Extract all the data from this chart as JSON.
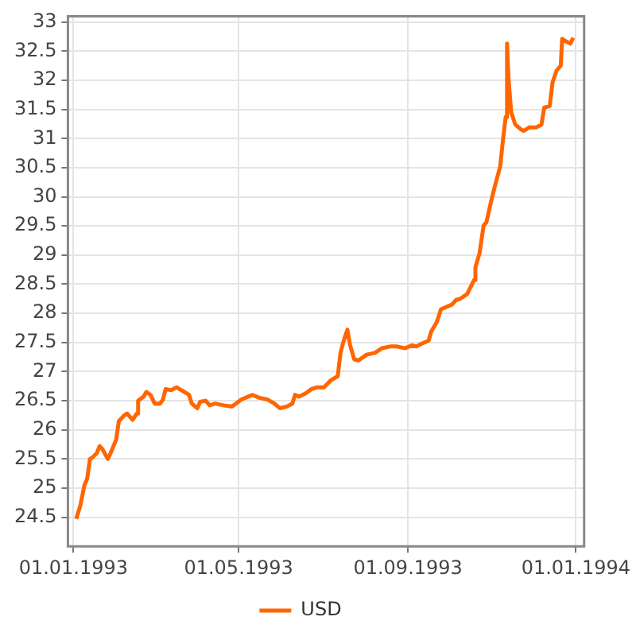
{
  "chart_data": {
    "type": "line",
    "x": [
      "1993-01-03",
      "1993-01-06",
      "1993-01-09",
      "1993-01-11",
      "1993-01-13",
      "1993-01-15",
      "1993-01-18",
      "1993-01-20",
      "1993-01-22",
      "1993-01-26",
      "1993-01-28",
      "1993-02-01",
      "1993-02-03",
      "1993-02-07",
      "1993-02-09",
      "1993-02-13",
      "1993-02-16",
      "1993-02-17",
      "1993-02-21",
      "1993-02-23",
      "1993-02-26",
      "1993-03-01",
      "1993-03-05",
      "1993-03-07",
      "1993-03-09",
      "1993-03-13",
      "1993-03-17",
      "1993-03-19",
      "1993-03-24",
      "1993-03-26",
      "1993-03-28",
      "1993-04-01",
      "1993-04-03",
      "1993-04-07",
      "1993-04-10",
      "1993-04-14",
      "1993-04-20",
      "1993-04-26",
      "1993-04-29",
      "1993-05-03",
      "1993-05-08",
      "1993-05-11",
      "1993-05-16",
      "1993-05-22",
      "1993-05-27",
      "1993-05-31",
      "1993-06-05",
      "1993-06-09",
      "1993-06-11",
      "1993-06-14",
      "1993-06-19",
      "1993-06-23",
      "1993-06-27",
      "1993-07-02",
      "1993-07-07",
      "1993-07-12",
      "1993-07-14",
      "1993-07-16",
      "1993-07-19",
      "1993-07-21",
      "1993-07-24",
      "1993-07-27",
      "1993-08-02",
      "1993-08-08",
      "1993-08-13",
      "1993-08-19",
      "1993-08-24",
      "1993-08-30",
      "1993-09-04",
      "1993-09-07",
      "1993-09-11",
      "1993-09-16",
      "1993-09-18",
      "1993-09-22",
      "1993-09-25",
      "1993-09-28",
      "1993-10-03",
      "1993-10-06",
      "1993-10-09",
      "1993-10-14",
      "1993-10-19",
      "1993-10-20",
      "1993-10-23",
      "1993-10-26",
      "1993-10-28",
      "1993-10-31",
      "1993-11-03",
      "1993-11-07",
      "1993-11-09",
      "1993-11-11",
      "1993-11-12",
      "1993-11-13",
      "1993-11-15",
      "1993-11-18",
      "1993-11-22",
      "1993-11-24",
      "1993-11-28",
      "1993-12-03",
      "1993-12-07",
      "1993-12-09",
      "1993-12-13",
      "1993-12-15",
      "1993-12-18",
      "1993-12-21",
      "1993-12-22",
      "1993-12-24",
      "1993-12-28",
      "1993-12-30"
    ],
    "series": [
      {
        "name": "USD",
        "color": "#ff6600",
        "values": [
          24.47,
          24.7,
          25.05,
          25.16,
          25.5,
          25.53,
          25.6,
          25.72,
          25.67,
          25.5,
          25.6,
          25.83,
          26.15,
          26.25,
          26.28,
          26.17,
          26.28,
          26.5,
          26.57,
          26.65,
          26.6,
          26.45,
          26.45,
          26.52,
          26.7,
          26.68,
          26.73,
          26.7,
          26.63,
          26.6,
          26.45,
          26.37,
          26.48,
          26.5,
          26.42,
          26.45,
          26.42,
          26.4,
          26.45,
          26.52,
          26.57,
          26.6,
          26.55,
          26.52,
          26.45,
          26.37,
          26.4,
          26.45,
          26.6,
          26.57,
          26.63,
          26.7,
          26.73,
          26.73,
          26.85,
          26.92,
          27.32,
          27.5,
          27.72,
          27.45,
          27.21,
          27.19,
          27.29,
          27.32,
          27.4,
          27.43,
          27.43,
          27.4,
          27.45,
          27.43,
          27.48,
          27.53,
          27.69,
          27.85,
          28.07,
          28.1,
          28.15,
          28.23,
          28.25,
          28.33,
          28.57,
          28.79,
          29.03,
          29.51,
          29.56,
          29.88,
          30.17,
          30.52,
          30.97,
          31.37,
          32.63,
          32.04,
          31.45,
          31.24,
          31.16,
          31.13,
          31.19,
          31.19,
          31.24,
          31.53,
          31.56,
          31.96,
          32.17,
          32.25,
          32.71,
          32.68,
          32.63,
          32.73
        ]
      }
    ],
    "xlim": [
      "1992-12-28",
      "1994-01-07"
    ],
    "xticks": [
      {
        "value": "1993-01-01",
        "label": "01.01.1993"
      },
      {
        "value": "1993-05-01",
        "label": "01.05.1993"
      },
      {
        "value": "1993-09-01",
        "label": "01.09.1993"
      },
      {
        "value": "1994-01-01",
        "label": "01.01.1994"
      }
    ],
    "ylim": [
      24,
      33.1
    ],
    "yticks": [
      24.5,
      25,
      25.5,
      26,
      26.5,
      27,
      27.5,
      28,
      28.5,
      29,
      29.5,
      30,
      30.5,
      31,
      31.5,
      32,
      32.5,
      33
    ],
    "grid": true,
    "legend": "bottom",
    "marker": "none",
    "line_style": "solid"
  }
}
